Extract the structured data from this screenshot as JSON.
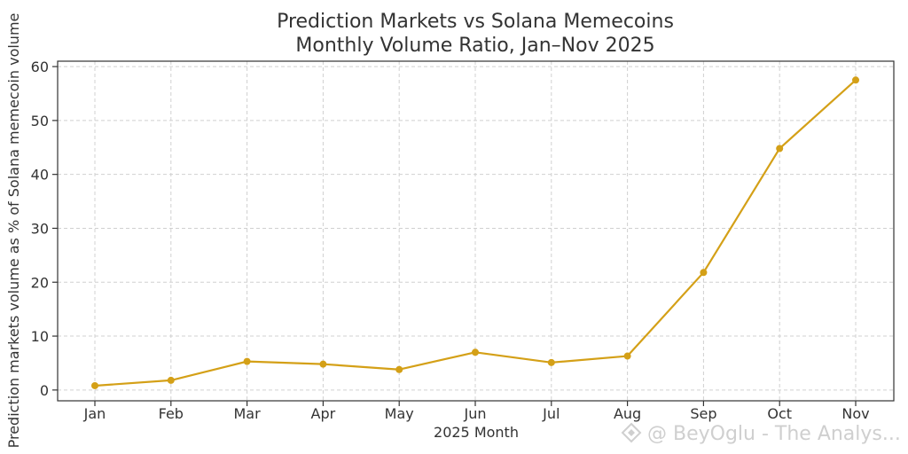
{
  "chart_data": {
    "type": "line",
    "title": "Prediction Markets vs Solana Memecoins",
    "subtitle": "Monthly Volume Ratio, Jan–Nov 2025",
    "xlabel": "2025 Month",
    "ylabel": "Prediction markets volume as % of Solana memecoin volume",
    "categories": [
      "Jan",
      "Feb",
      "Mar",
      "Apr",
      "May",
      "Jun",
      "Jul",
      "Aug",
      "Sep",
      "Oct",
      "Nov"
    ],
    "series": [
      {
        "values": [
          0.8,
          1.8,
          5.3,
          4.8,
          3.8,
          7.0,
          5.1,
          6.3,
          21.8,
          44.8,
          57.5
        ],
        "color": "#d4a017"
      }
    ],
    "ylim": [
      -2,
      61
    ],
    "yticks": [
      0,
      10,
      20,
      30,
      40,
      50,
      60
    ],
    "grid": true,
    "grid_style": "dashed"
  },
  "watermark": "@ BeyOglu - The Analys..."
}
